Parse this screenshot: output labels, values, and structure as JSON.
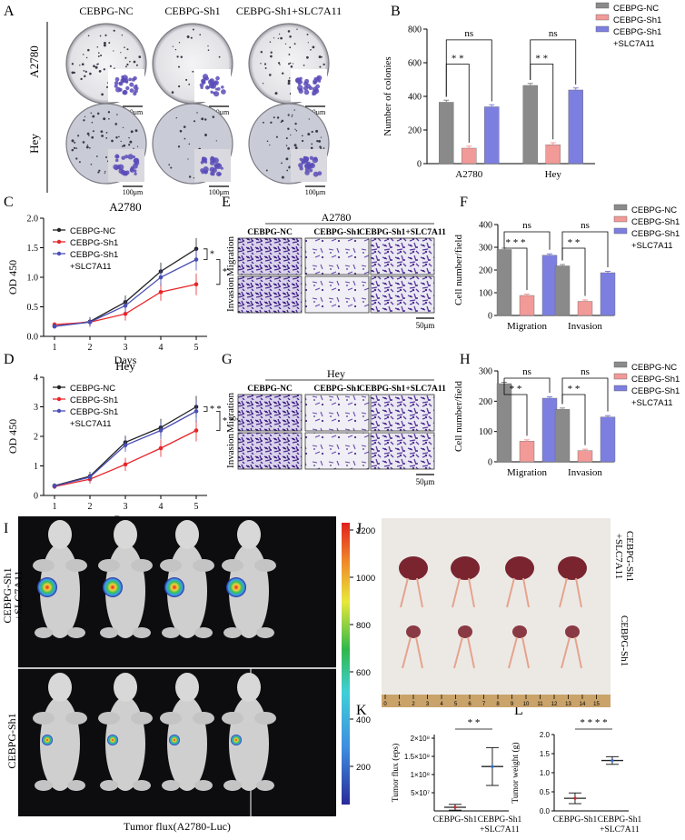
{
  "panel_letters": [
    "A",
    "B",
    "C",
    "D",
    "E",
    "F",
    "G",
    "H",
    "I",
    "J",
    "K",
    "L"
  ],
  "panel_a": {
    "columns": [
      "CEBPG-NC",
      "CEBPG-Sh1",
      "CEBPG-Sh1+SLC7A11"
    ],
    "rows": [
      "A2780",
      "Hey"
    ],
    "scale": "100μm"
  },
  "legend3": [
    "CEBPG-NC",
    "CEBPG-Sh1",
    "CEBPG-Sh1",
    "+SLC7A11"
  ],
  "colors": {
    "nc": "#8a8a8a",
    "sh1": "#f29a98",
    "slc": "#7d7fe0",
    "line_nc": "#222222",
    "line_sh1": "#e8262a",
    "line_slc": "#4a4fb5"
  },
  "stat": {
    "ns": "ns",
    "two": "* *",
    "three": "* * *",
    "four": "* * * *",
    "one": "*"
  },
  "chart_data": [
    {
      "panel": "B",
      "type": "bar",
      "ylabel": "Number of colonies",
      "categories": [
        "A2780",
        "Hey"
      ],
      "ylim": [
        0,
        800
      ],
      "yticks": [
        0,
        200,
        400,
        600,
        800
      ],
      "series": [
        {
          "name": "CEBPG-NC",
          "values": [
            365,
            465
          ]
        },
        {
          "name": "CEBPG-Sh1",
          "values": [
            92,
            112
          ]
        },
        {
          "name": "CEBPG-Sh1 +SLC7A11",
          "values": [
            338,
            438
          ]
        }
      ]
    },
    {
      "panel": "C",
      "type": "line",
      "title": "A2780",
      "xlabel": "Days",
      "ylabel": "OD 450",
      "x": [
        1,
        2,
        3,
        4,
        5
      ],
      "xlim": [
        1,
        5
      ],
      "ylim": [
        0,
        2.0
      ],
      "yticks": [
        0,
        0.5,
        1.0,
        1.5,
        2.0
      ],
      "ytick_labels": [
        "0.0",
        "0.5",
        "1.0",
        "1.5",
        "2.0"
      ],
      "series": [
        {
          "name": "CEBPG-NC",
          "values": [
            0.17,
            0.25,
            0.58,
            1.1,
            1.48
          ]
        },
        {
          "name": "CEBPG-Sh1",
          "values": [
            0.2,
            0.24,
            0.38,
            0.75,
            0.88
          ]
        },
        {
          "name": "CEBPG-Sh1 +SLC7A11",
          "values": [
            0.17,
            0.24,
            0.52,
            1.0,
            1.3
          ]
        }
      ]
    },
    {
      "panel": "D",
      "type": "line",
      "title": "Hey",
      "xlabel": "Days",
      "ylabel": "OD 450",
      "x": [
        1,
        2,
        3,
        4,
        5
      ],
      "xlim": [
        1,
        5
      ],
      "ylim": [
        0,
        4
      ],
      "yticks": [
        0,
        1,
        2,
        3,
        4
      ],
      "ytick_labels": [
        "0",
        "1",
        "2",
        "3",
        "4"
      ],
      "series": [
        {
          "name": "CEBPG-NC",
          "values": [
            0.33,
            0.65,
            1.8,
            2.3,
            3.0
          ]
        },
        {
          "name": "CEBPG-Sh1",
          "values": [
            0.3,
            0.55,
            1.05,
            1.6,
            2.2
          ]
        },
        {
          "name": "CEBPG-Sh1 +SLC7A11",
          "values": [
            0.32,
            0.62,
            1.7,
            2.2,
            2.85
          ]
        }
      ]
    },
    {
      "panel": "F",
      "type": "bar",
      "ylabel": "Cell number/field",
      "categories": [
        "Migration",
        "Invasion"
      ],
      "ylim": [
        0,
        400
      ],
      "yticks": [
        0,
        100,
        200,
        300,
        400
      ],
      "series": [
        {
          "name": "CEBPG-NC",
          "values": [
            290,
            218
          ]
        },
        {
          "name": "CEBPG-Sh1",
          "values": [
            88,
            62
          ]
        },
        {
          "name": "CEBPG-Sh1 +SLC7A11",
          "values": [
            265,
            188
          ]
        }
      ]
    },
    {
      "panel": "H",
      "type": "bar",
      "ylabel": "Cell number/field",
      "categories": [
        "Migration",
        "Invasion"
      ],
      "ylim": [
        0,
        300
      ],
      "yticks": [
        0,
        100,
        200,
        300
      ],
      "series": [
        {
          "name": "CEBPG-NC",
          "values": [
            258,
            173
          ]
        },
        {
          "name": "CEBPG-Sh1",
          "values": [
            68,
            37
          ]
        },
        {
          "name": "CEBPG-Sh1 +SLC7A11",
          "values": [
            210,
            148
          ]
        }
      ]
    },
    {
      "panel": "K",
      "type": "scatter",
      "ylabel": "Tumor flux (eps)",
      "categories": [
        "CEBPG-Sh1",
        "CEBPG-Sh1 +SLC7A11"
      ],
      "ytick_labels": [
        "5×10⁷",
        "1×10⁸",
        "1.5×10⁸",
        "2×10⁸"
      ],
      "yticks": [
        50000000,
        100000000,
        150000000,
        200000000
      ],
      "ylim": [
        0,
        210000000
      ],
      "groups": [
        {
          "name": "CEBPG-Sh1",
          "mean": 10000000,
          "sd": 8000000
        },
        {
          "name": "CEBPG-Sh1 +SLC7A11",
          "mean": 122000000,
          "sd": 52000000
        }
      ]
    },
    {
      "panel": "L",
      "type": "scatter",
      "ylabel": "Tumor weight (g)",
      "categories": [
        "CEBPG-Sh1",
        "CEBPG-Sh1 +SLC7A11"
      ],
      "ylim": [
        0,
        2.0
      ],
      "yticks": [
        0,
        0.5,
        1.0,
        1.5,
        2.0
      ],
      "ytick_labels": [
        "0.0",
        "0.5",
        "1.0",
        "1.5",
        "2.0"
      ],
      "groups": [
        {
          "name": "CEBPG-Sh1",
          "mean": 0.33,
          "sd": 0.14
        },
        {
          "name": "CEBPG-Sh1 +SLC7A11",
          "mean": 1.32,
          "sd": 0.1
        }
      ]
    }
  ],
  "panel_e": {
    "title": "A2780",
    "cols": [
      "CEBPG-NC",
      "CEBPG-Sh1",
      "CEBPG-Sh1+SLC7A11"
    ],
    "rows": [
      "Migration",
      "Invasion"
    ],
    "scale": "50μm"
  },
  "panel_g": {
    "title": "Hey",
    "cols": [
      "CEBPG-NC",
      "CEBPG-Sh1",
      "CEBPG-Sh1+SLC7A11"
    ],
    "rows": [
      "Migration",
      "Invasion"
    ],
    "scale": "50μm"
  },
  "panel_i": {
    "row_labels": [
      "CEBPG-Sh1",
      "+SLC7A11",
      "CEBPG-Sh1"
    ],
    "colorbar": [
      "1200",
      "1000",
      "800",
      "600",
      "400",
      "200"
    ],
    "caption": "Tumor flux(A2780-Luc)"
  },
  "panel_j": {
    "labels": [
      "CEBPG-Sh1",
      "+SLC7A11",
      "CEBPG-Sh1"
    ],
    "ruler": [
      "0",
      "1",
      "2",
      "3",
      "4",
      "5",
      "6",
      "7",
      "8",
      "9",
      "10",
      "11",
      "12",
      "13",
      "14",
      "15"
    ]
  }
}
